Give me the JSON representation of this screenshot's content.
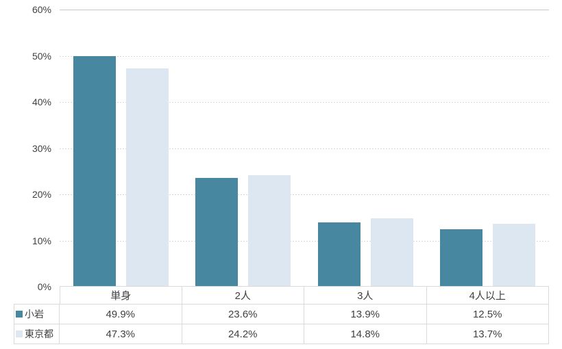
{
  "chart_data": {
    "type": "bar",
    "title": "",
    "categories": [
      "単身",
      "2人",
      "3人",
      "4人以上"
    ],
    "series": [
      {
        "name": "小岩",
        "color": "#4788A0",
        "values": [
          49.9,
          23.6,
          13.9,
          12.5
        ]
      },
      {
        "name": "東京都",
        "color": "#DCE7F2",
        "values": [
          47.3,
          24.2,
          14.8,
          13.7
        ]
      }
    ],
    "xlabel": "",
    "ylabel": "",
    "ylim": [
      0,
      60
    ],
    "ytick_step": 10,
    "grid": true,
    "legend_position": "data-table-left",
    "value_suffix": "%"
  },
  "yaxis": {
    "labels": [
      "60%",
      "50%",
      "40%",
      "30%",
      "20%",
      "10%",
      "0%"
    ]
  },
  "table": {
    "rows": [
      {
        "label": "小岩",
        "values": [
          "49.9%",
          "23.6%",
          "13.9%",
          "12.5%"
        ]
      },
      {
        "label": "東京都",
        "values": [
          "47.3%",
          "24.2%",
          "14.8%",
          "13.7%"
        ]
      }
    ]
  },
  "colors": {
    "series_1": "#4788A0",
    "series_2": "#DCE7F2",
    "gridline": "#D9D9D9",
    "border": "#D9D9D9",
    "text": "#404040"
  }
}
